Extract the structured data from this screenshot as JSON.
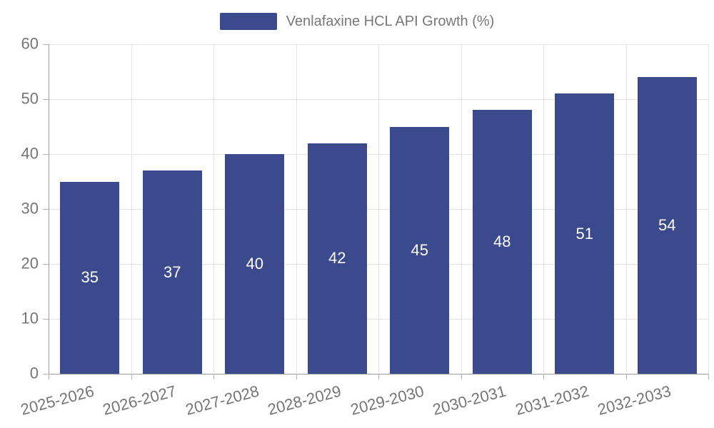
{
  "legend": {
    "label": "Venlafaxine HCL API Growth (%)"
  },
  "colors": {
    "bar": "#3A4A8C",
    "value_label": "#FFFFFF",
    "legend_text": "#76777C",
    "axis_label": "#757579",
    "axis_line": "#9B9B9B",
    "tick_mark": "#B5B5B5",
    "grid_line": "#E3E3E3",
    "background": "#FFFFFF"
  },
  "chart_data": {
    "type": "bar",
    "title": "Venlafaxine HCL API Growth (%)",
    "legend_entries": [
      "Venlafaxine HCL API Growth (%)"
    ],
    "legend_position": "top-center",
    "categories": [
      "2025-2026",
      "2026-2027",
      "2027-2028",
      "2028-2029",
      "2029-2030",
      "2030-2031",
      "2031-2032",
      "2032-2033"
    ],
    "values": [
      35,
      37,
      40,
      42,
      45,
      48,
      51,
      54
    ],
    "series": [
      {
        "name": "Venlafaxine HCL API Growth (%)",
        "values": [
          35,
          37,
          40,
          42,
          45,
          48,
          51,
          54
        ]
      }
    ],
    "bar_value_labels": [
      "35",
      "37",
      "40",
      "42",
      "45",
      "48",
      "51",
      "54"
    ],
    "value_label_position": "inside-middle",
    "xlabel": "",
    "ylabel": "",
    "ylim": [
      0,
      60
    ],
    "yticks": [
      0,
      10,
      20,
      30,
      40,
      50,
      60
    ],
    "grid": true,
    "x_label_rotation_deg": -15
  }
}
